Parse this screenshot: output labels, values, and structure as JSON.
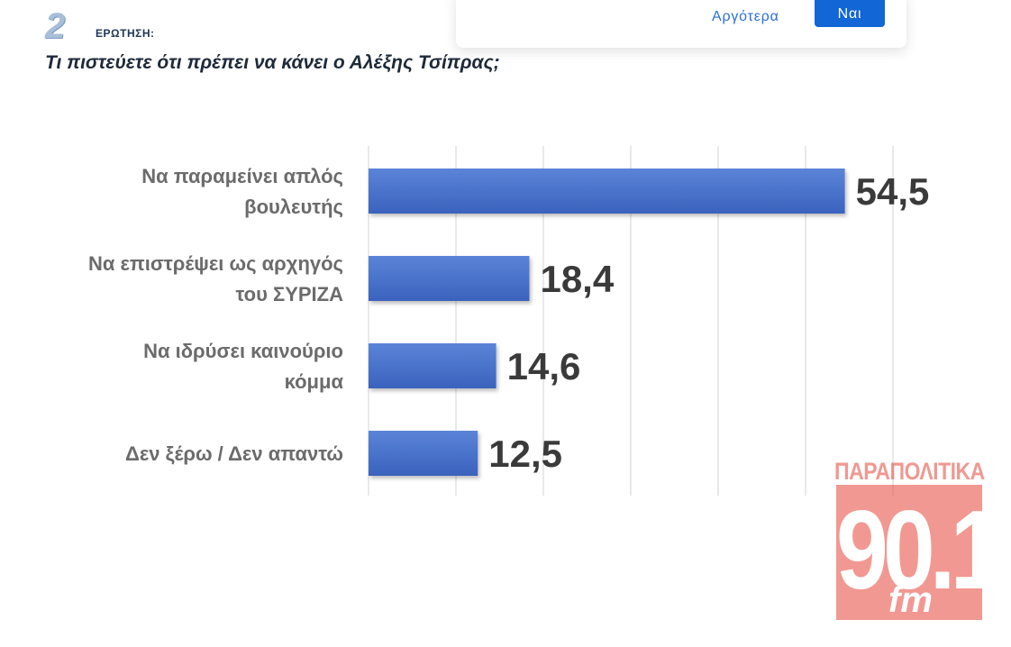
{
  "header": {
    "question_number": "2",
    "question_label": "ΕΡΩΤΗΣΗ:",
    "question_text": "Τι πιστεύετε ότι πρέπει να κάνει ο Αλέξης Τσίπρας;"
  },
  "popup": {
    "later_label": "Αργότερα",
    "yes_label": "Ναι"
  },
  "logo": {
    "top_text": "ΠΑΡΑΠΟΛΙΤΙΚΑ",
    "number_text": "90.1",
    "fm_text": "fm"
  },
  "colors": {
    "bar": "#4a72c8",
    "gridline": "#e2e2e2",
    "logo": "#e9443a",
    "button": "#1266d6"
  },
  "chart_data": {
    "type": "bar",
    "orientation": "horizontal",
    "categories": [
      [
        "Να παραμείνει απλός",
        "βουλευτής"
      ],
      [
        "Να επιστρέψει ως αρχηγός",
        "του ΣΥΡΙΖΑ"
      ],
      [
        "Να ιδρύσει καινούριο",
        "κόμμα"
      ],
      [
        "Δεν ξέρω / Δεν απαντώ"
      ]
    ],
    "values": [
      54.5,
      18.4,
      14.6,
      12.5
    ],
    "value_labels": [
      "54,5",
      "18,4",
      "14,6",
      "12,5"
    ],
    "xlim": [
      0,
      60
    ],
    "grid": true
  }
}
